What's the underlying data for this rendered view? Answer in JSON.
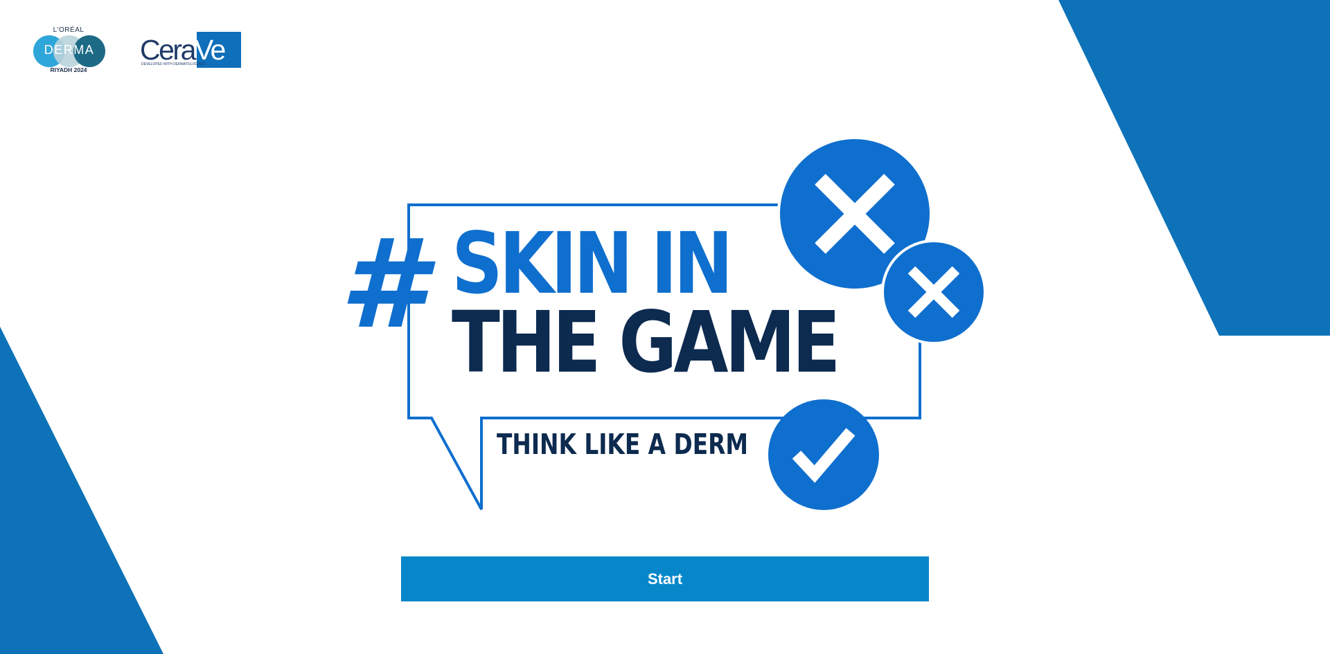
{
  "colors": {
    "background": "#ffffff",
    "decor_blue": "#0e72b8",
    "brand_blue": "#0f6fce",
    "navy": "#0d2a4f",
    "button_blue": "#0787c9",
    "button_text": "#ffffff"
  },
  "header": {
    "derma_logo": {
      "brand_top": "L'ORÉAL",
      "wordmark": "DERMA",
      "event": "RIYADH 2024"
    },
    "cerave_logo": {
      "wordmark_a": "Cera",
      "wordmark_b": "Ve",
      "tagline": "DEVELOPED WITH DERMATOLOGISTS"
    }
  },
  "hero": {
    "hashtag": "#",
    "line1": "SKIN IN",
    "line2": "THE GAME",
    "tagline": "THINK LIKE A DERM",
    "icons": [
      "x-mark-icon",
      "x-mark-icon",
      "check-mark-icon"
    ]
  },
  "actions": {
    "start_label": "Start"
  }
}
